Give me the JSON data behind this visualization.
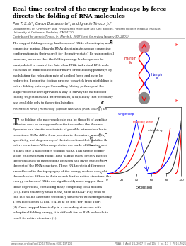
{
  "title_line1": "Real-time control of the energy landscape by force",
  "title_line2": "directs the folding of RNA molecules",
  "authors": "Pan T. X. Li*, Carlos Bustamante*, and Ignacio Tinoco, Jr.*",
  "affiliations": "Departments of Chemistry and Physics and Molecular and Cell Biology, Howard Hughes Medical Institute, University of California, Berkeley, CA 94720",
  "contributed": "Contributed by Ignacio Tinoco, Jr., March 8, 2007 (sent for review January 30, 2007)",
  "abstract_text": "The rugged folding energy landscapes of RNAs often display many competing minima. How do RNAs discriminate among competing conformations in their search for the native state? By using optical tweezers, we show that the folding-energy landscape can be manipulated to control the fate of an RNA: individual RNA molecules can be induced into either native or misfolding pathways by modulating the relaxation rate of applied force and even be redirected during the folding process to switch from misfolding to native folding pathways. Controlling folding pathways at the single-molecule level provides a way to survey the manifold of folding trajectories and intermediates, a capability that previously was available only to theoretical studies.",
  "keywords": "mechanical force | misfolding | optical tweezers | RNA folding | single molecule",
  "date": "April 24, 2007",
  "vol": "vol 104",
  "no": "no. 17",
  "pages": "7016-7021",
  "background_color": "#ffffff",
  "sidebar_color": "#1a3a6b",
  "title_color": "#000000",
  "body_text_color": "#111111"
}
